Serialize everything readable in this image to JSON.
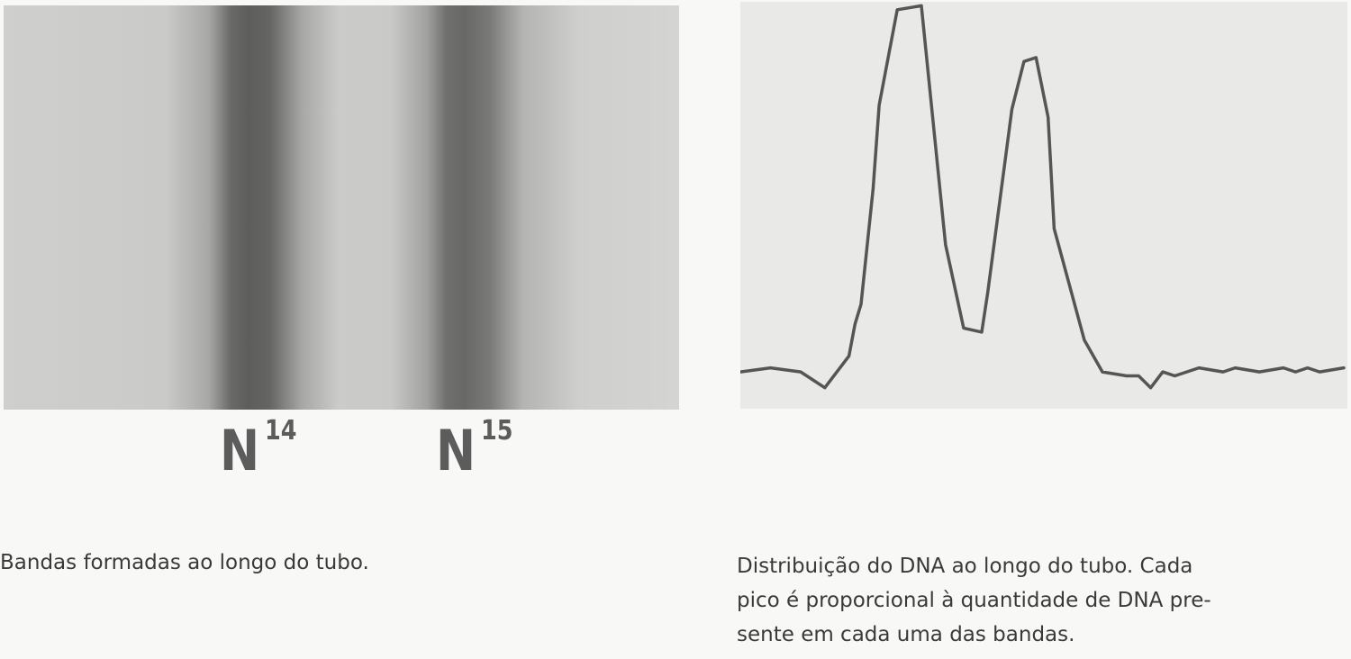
{
  "left_figure": {
    "bands": [
      {
        "label": "N",
        "superscript": "14"
      },
      {
        "label": "N",
        "superscript": "15"
      }
    ],
    "caption": "Bandas formadas ao longo do tubo."
  },
  "right_figure": {
    "caption_lines": [
      "Distribuição do DNA ao longo do tubo. Cada",
      "pico é proporcional à quantidade de DNA pre-",
      "sente em cada uma das bandas."
    ],
    "chart_data": {
      "type": "line",
      "series": [
        {
          "x": [
            0,
            5,
            10,
            14,
            18,
            19,
            20,
            22,
            23,
            26,
            30,
            34,
            37,
            40,
            41,
            43,
            45,
            47,
            49,
            51,
            52,
            57,
            60,
            64,
            66,
            68,
            70,
            72,
            76,
            80,
            82,
            86,
            90,
            92,
            94,
            96,
            100
          ],
          "values": [
            0.07,
            0.08,
            0.07,
            0.03,
            0.11,
            0.19,
            0.24,
            0.53,
            0.74,
            0.98,
            0.99,
            0.39,
            0.18,
            0.17,
            0.27,
            0.5,
            0.73,
            0.85,
            0.86,
            0.71,
            0.43,
            0.15,
            0.07,
            0.06,
            0.06,
            0.03,
            0.07,
            0.06,
            0.08,
            0.07,
            0.08,
            0.07,
            0.08,
            0.07,
            0.08,
            0.07,
            0.08
          ]
        }
      ],
      "xlim": [
        0,
        100
      ],
      "ylim": [
        0,
        1
      ]
    }
  }
}
